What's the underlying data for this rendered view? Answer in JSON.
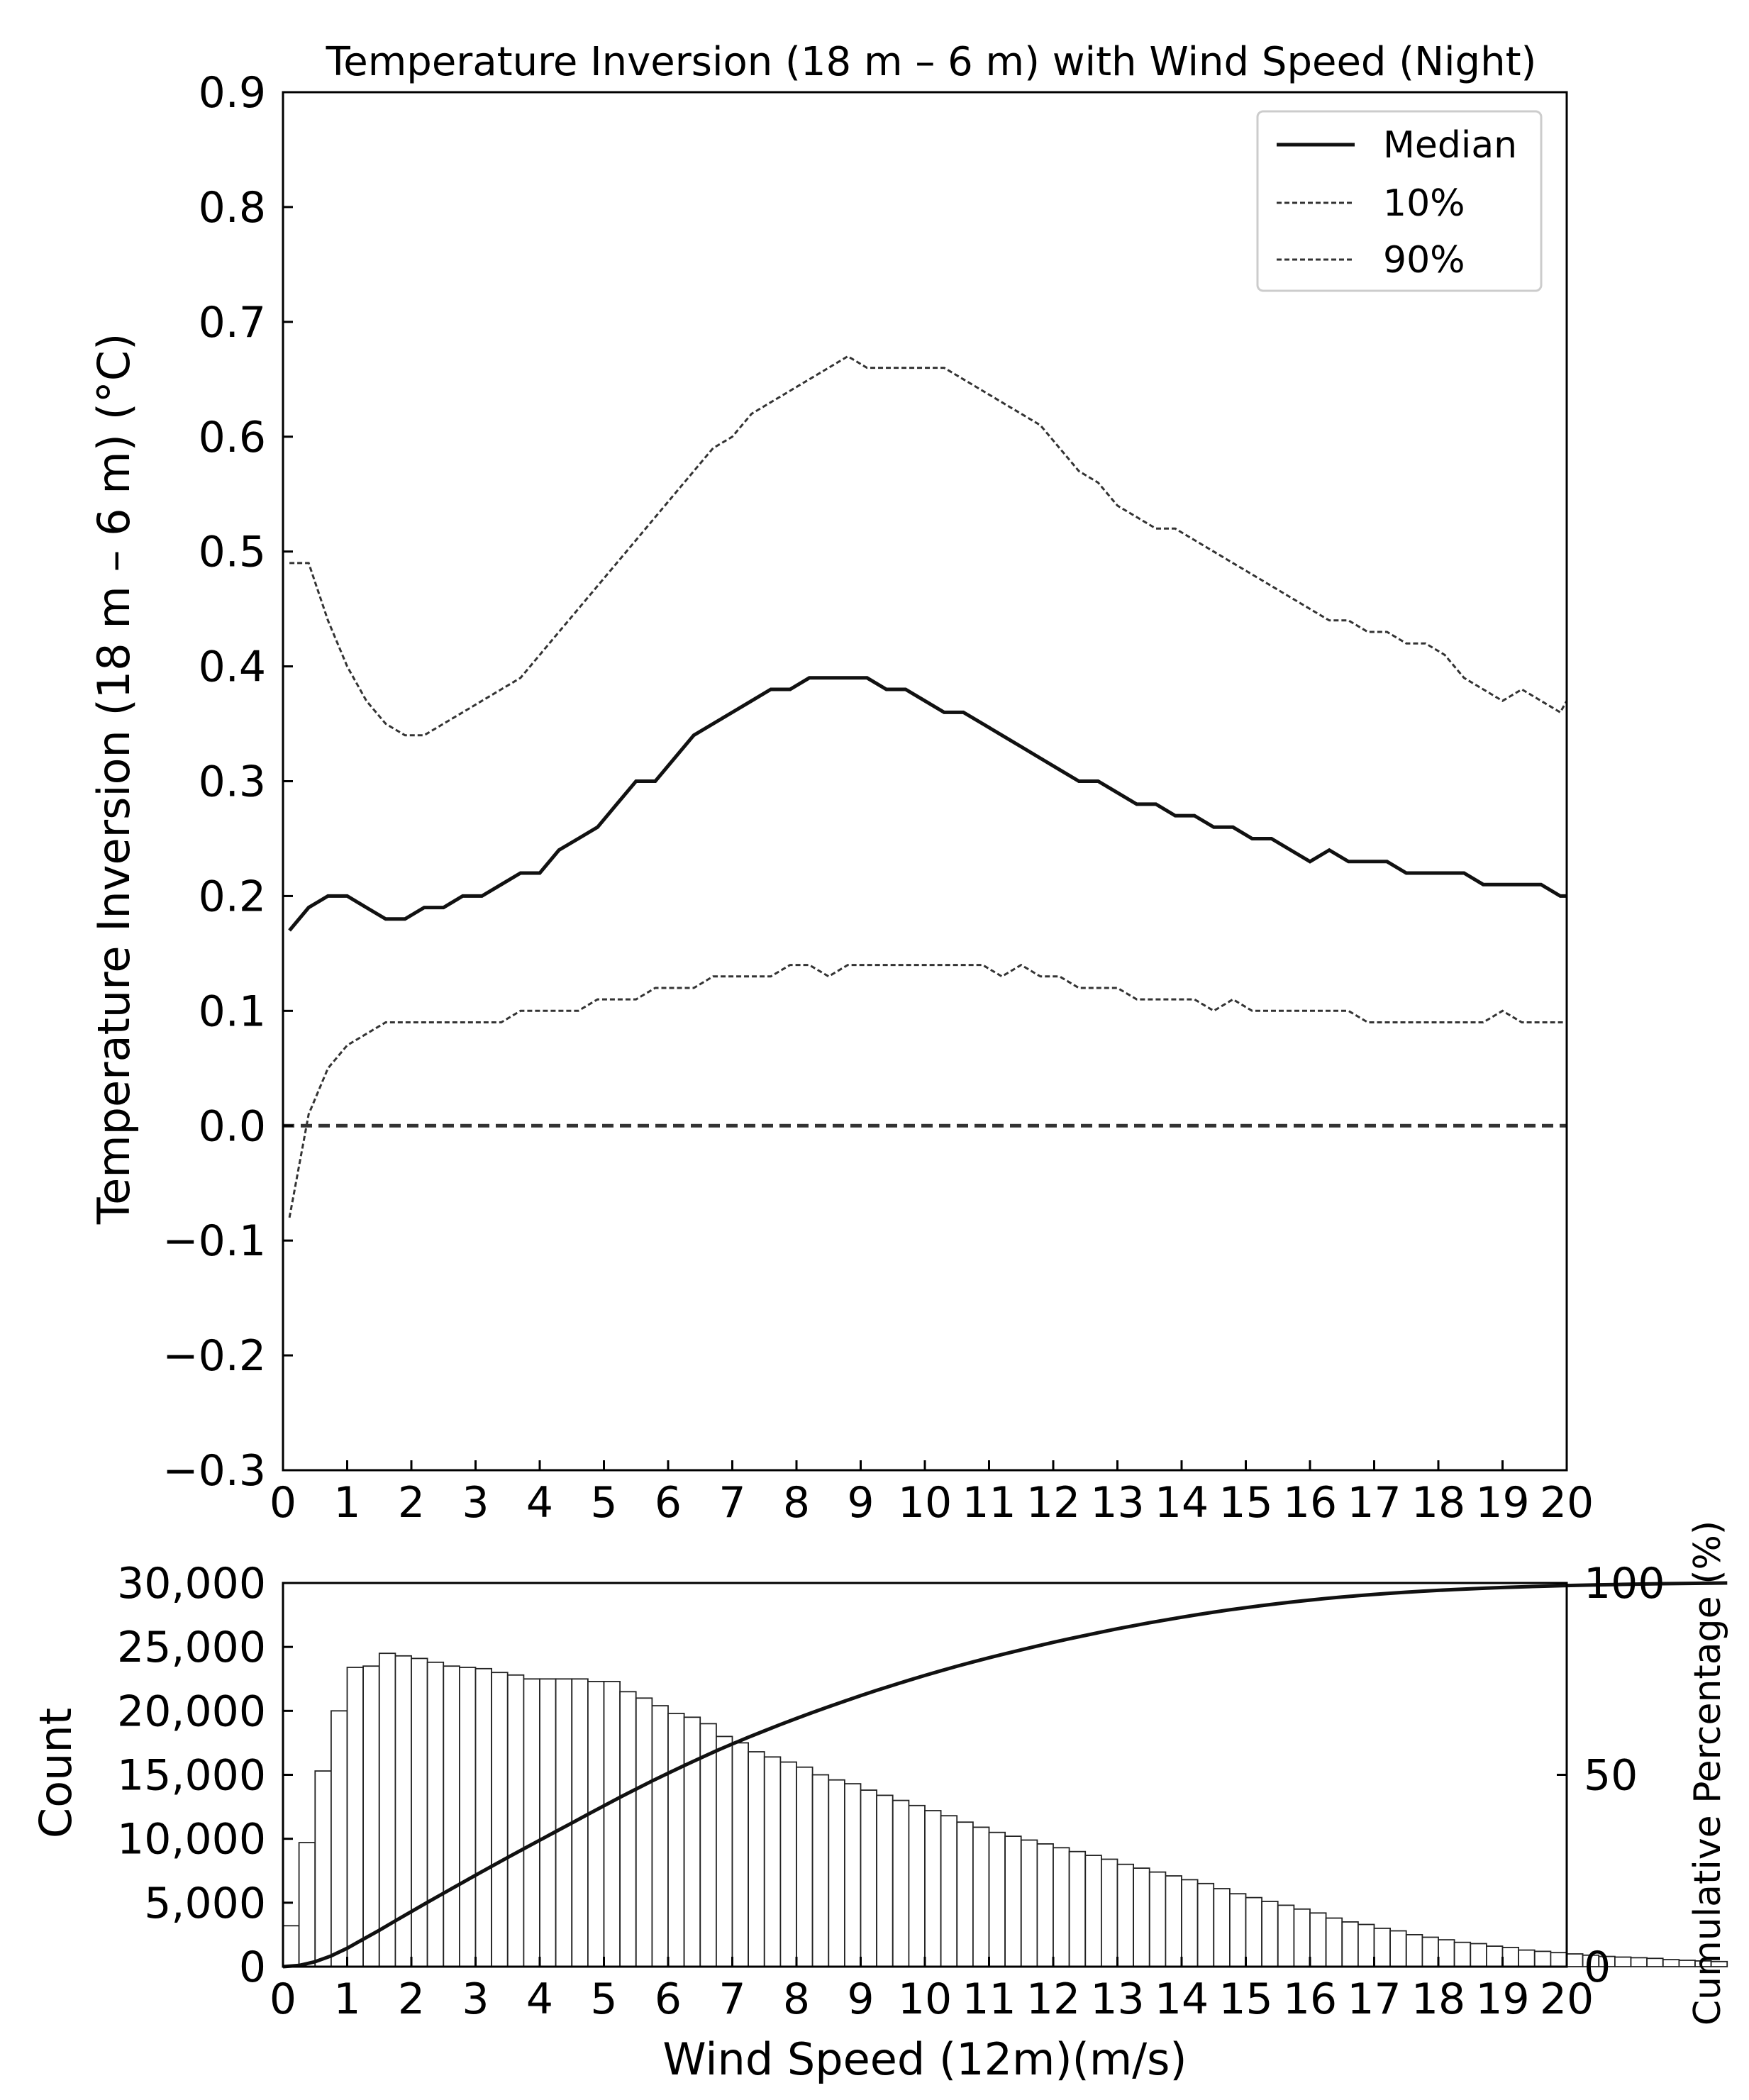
{
  "chart_data": [
    {
      "type": "line",
      "title": "Temperature Inversion (18 m – 6 m) with Wind Speed (Night)",
      "xlabel": "",
      "ylabel": "Temperature Inversion (18 m – 6 m) (°C)",
      "xlim": [
        0,
        20
      ],
      "ylim": [
        -0.3,
        0.9
      ],
      "xticks": [
        0,
        1,
        2,
        3,
        4,
        5,
        6,
        7,
        8,
        9,
        10,
        11,
        12,
        13,
        14,
        15,
        16,
        17,
        18,
        19,
        20
      ],
      "xtick_labels": [
        "0",
        "1",
        "2",
        "3",
        "4",
        "5",
        "6",
        "7",
        "8",
        "9",
        "10",
        "11",
        "12",
        "13",
        "14",
        "15",
        "16",
        "17",
        "18",
        "19",
        "20"
      ],
      "yticks": [
        -0.3,
        -0.2,
        -0.1,
        0.0,
        0.1,
        0.2,
        0.3,
        0.4,
        0.5,
        0.6,
        0.7,
        0.8,
        0.9
      ],
      "ytick_labels": [
        "−0.3",
        "−0.2",
        "−0.1",
        "0.0",
        "0.1",
        "0.2",
        "0.3",
        "0.4",
        "0.5",
        "0.6",
        "0.7",
        "0.8",
        "0.9"
      ],
      "grid": false,
      "legend_position": "top-right",
      "zero_line": 0.0,
      "x": [
        0.1,
        0.4,
        0.7,
        1.0,
        1.3,
        1.6,
        1.9,
        2.2,
        2.5,
        2.8,
        3.1,
        3.4,
        3.7,
        4.0,
        4.3,
        4.6,
        4.9,
        5.2,
        5.5,
        5.8,
        6.1,
        6.4,
        6.7,
        7.0,
        7.3,
        7.6,
        7.9,
        8.2,
        8.5,
        8.8,
        9.1,
        9.4,
        9.7,
        10.0,
        10.3,
        10.6,
        10.9,
        11.2,
        11.5,
        11.8,
        12.1,
        12.4,
        12.7,
        13.0,
        13.3,
        13.6,
        13.9,
        14.2,
        14.5,
        14.8,
        15.1,
        15.4,
        15.7,
        16.0,
        16.3,
        16.6,
        16.9,
        17.2,
        17.5,
        17.8,
        18.1,
        18.4,
        18.7,
        19.0,
        19.3,
        19.6,
        19.9,
        20.0
      ],
      "series": [
        {
          "name": "Median",
          "style": "solid",
          "values": [
            0.17,
            0.19,
            0.2,
            0.2,
            0.19,
            0.18,
            0.18,
            0.19,
            0.19,
            0.2,
            0.2,
            0.21,
            0.22,
            0.22,
            0.24,
            0.25,
            0.26,
            0.28,
            0.3,
            0.3,
            0.32,
            0.34,
            0.35,
            0.36,
            0.37,
            0.38,
            0.38,
            0.39,
            0.39,
            0.39,
            0.39,
            0.38,
            0.38,
            0.37,
            0.36,
            0.36,
            0.35,
            0.34,
            0.33,
            0.32,
            0.31,
            0.3,
            0.3,
            0.29,
            0.28,
            0.28,
            0.27,
            0.27,
            0.26,
            0.26,
            0.25,
            0.25,
            0.24,
            0.23,
            0.24,
            0.23,
            0.23,
            0.23,
            0.22,
            0.22,
            0.22,
            0.22,
            0.21,
            0.21,
            0.21,
            0.21,
            0.2,
            0.2
          ]
        },
        {
          "name": "10%",
          "style": "dashed",
          "values": [
            -0.08,
            0.01,
            0.05,
            0.07,
            0.08,
            0.09,
            0.09,
            0.09,
            0.09,
            0.09,
            0.09,
            0.09,
            0.1,
            0.1,
            0.1,
            0.1,
            0.11,
            0.11,
            0.11,
            0.12,
            0.12,
            0.12,
            0.13,
            0.13,
            0.13,
            0.13,
            0.14,
            0.14,
            0.13,
            0.14,
            0.14,
            0.14,
            0.14,
            0.14,
            0.14,
            0.14,
            0.14,
            0.13,
            0.14,
            0.13,
            0.13,
            0.12,
            0.12,
            0.12,
            0.11,
            0.11,
            0.11,
            0.11,
            0.1,
            0.11,
            0.1,
            0.1,
            0.1,
            0.1,
            0.1,
            0.1,
            0.09,
            0.09,
            0.09,
            0.09,
            0.09,
            0.09,
            0.09,
            0.1,
            0.09,
            0.09,
            0.09,
            0.09
          ]
        },
        {
          "name": "90%",
          "style": "dashed",
          "values": [
            0.49,
            0.49,
            0.44,
            0.4,
            0.37,
            0.35,
            0.34,
            0.34,
            0.35,
            0.36,
            0.37,
            0.38,
            0.39,
            0.41,
            0.43,
            0.45,
            0.47,
            0.49,
            0.51,
            0.53,
            0.55,
            0.57,
            0.59,
            0.6,
            0.62,
            0.63,
            0.64,
            0.65,
            0.66,
            0.67,
            0.66,
            0.66,
            0.66,
            0.66,
            0.66,
            0.65,
            0.64,
            0.63,
            0.62,
            0.61,
            0.59,
            0.57,
            0.56,
            0.54,
            0.53,
            0.52,
            0.52,
            0.51,
            0.5,
            0.49,
            0.48,
            0.47,
            0.46,
            0.45,
            0.44,
            0.44,
            0.43,
            0.43,
            0.42,
            0.42,
            0.41,
            0.39,
            0.38,
            0.37,
            0.38,
            0.37,
            0.36,
            0.37
          ]
        }
      ]
    },
    {
      "type": "bar",
      "title": "",
      "xlabel": "Wind Speed (12m)(m/s)",
      "ylabel": "Count",
      "ylabel_right": "Cumulative Percentage (%)",
      "xlim": [
        0,
        20
      ],
      "ylim": [
        0,
        30000
      ],
      "ylim_right": [
        0,
        100
      ],
      "xticks": [
        0,
        1,
        2,
        3,
        4,
        5,
        6,
        7,
        8,
        9,
        10,
        11,
        12,
        13,
        14,
        15,
        16,
        17,
        18,
        19,
        20
      ],
      "xtick_labels": [
        "0",
        "1",
        "2",
        "3",
        "4",
        "5",
        "6",
        "7",
        "8",
        "9",
        "10",
        "11",
        "12",
        "13",
        "14",
        "15",
        "16",
        "17",
        "18",
        "19",
        "20"
      ],
      "yticks": [
        0,
        5000,
        10000,
        15000,
        20000,
        25000,
        30000
      ],
      "ytick_labels": [
        "0",
        "5,000",
        "10,000",
        "15,000",
        "20,000",
        "25,000",
        "30,000"
      ],
      "yticks_right": [
        0,
        50,
        100
      ],
      "ytick_labels_right": [
        "0",
        "50",
        "100"
      ],
      "grid": false,
      "bin_width": 0.25,
      "bin_start": 0,
      "counts": [
        3200,
        9700,
        15300,
        20000,
        23400,
        23500,
        24500,
        24300,
        24100,
        23800,
        23500,
        23400,
        23300,
        23000,
        22800,
        22500,
        22500,
        22500,
        22500,
        22300,
        22300,
        21500,
        21000,
        20400,
        19800,
        19500,
        19000,
        18000,
        17500,
        16800,
        16400,
        16000,
        15600,
        15000,
        14600,
        14300,
        13800,
        13400,
        13000,
        12600,
        12200,
        11800,
        11300,
        10900,
        10500,
        10200,
        9900,
        9600,
        9300,
        9000,
        8700,
        8400,
        8000,
        7700,
        7400,
        7100,
        6800,
        6500,
        6100,
        5700,
        5400,
        5100,
        4800,
        4500,
        4200,
        3800,
        3500,
        3300,
        3000,
        2800,
        2500,
        2300,
        2100,
        1900,
        1800,
        1600,
        1500,
        1300,
        1200,
        1100,
        1000,
        900,
        800,
        750,
        700,
        650,
        550,
        500,
        450,
        400
      ]
    }
  ]
}
